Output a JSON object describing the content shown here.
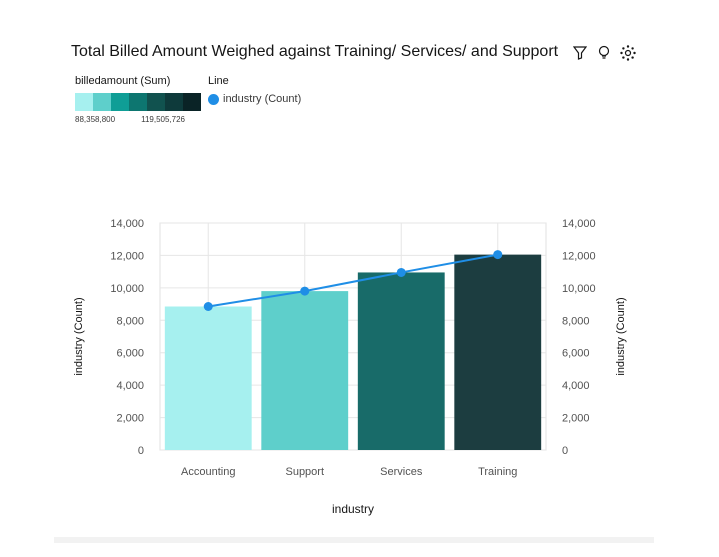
{
  "title": "Total Billed Amount Weighed against Training/ Services/ and Support",
  "toolbar": {
    "icons": [
      "filter-icon",
      "lightbulb-icon",
      "settings-icon"
    ]
  },
  "legend": {
    "color_title": "billedamount (Sum)",
    "color_min": "88,358,800",
    "color_max": "119,505,726",
    "swatches": [
      "#a6f0ef",
      "#5ecfcb",
      "#0f9e96",
      "#0d7670",
      "#11524f",
      "#0e3a3b",
      "#0a2326"
    ],
    "line_title": "Line",
    "line_entry": "industry (Count)",
    "line_color": "#1f8ee6"
  },
  "chart_data": {
    "type": "bar",
    "categories": [
      "Accounting",
      "Support",
      "Services",
      "Training"
    ],
    "series": [
      {
        "type": "bar",
        "values": [
          8850,
          9800,
          10950,
          12050
        ],
        "colors": [
          "#a6f0ef",
          "#5ecfcb",
          "#186b69",
          "#1c3d40"
        ]
      },
      {
        "name": "industry (Count)",
        "type": "line",
        "values": [
          8850,
          9800,
          10950,
          12050
        ],
        "color": "#1f8ee6"
      }
    ],
    "xlabel": "industry",
    "ylabel": "industry (Count)",
    "ylabel_right": "industry (Count)",
    "ylim": [
      0,
      14000
    ],
    "yticks": [
      0,
      2000,
      4000,
      6000,
      8000,
      10000,
      12000,
      14000
    ],
    "ytick_labels": [
      "0",
      "2,000",
      "4,000",
      "6,000",
      "8,000",
      "10,000",
      "12,000",
      "14,000"
    ],
    "grid": true
  }
}
